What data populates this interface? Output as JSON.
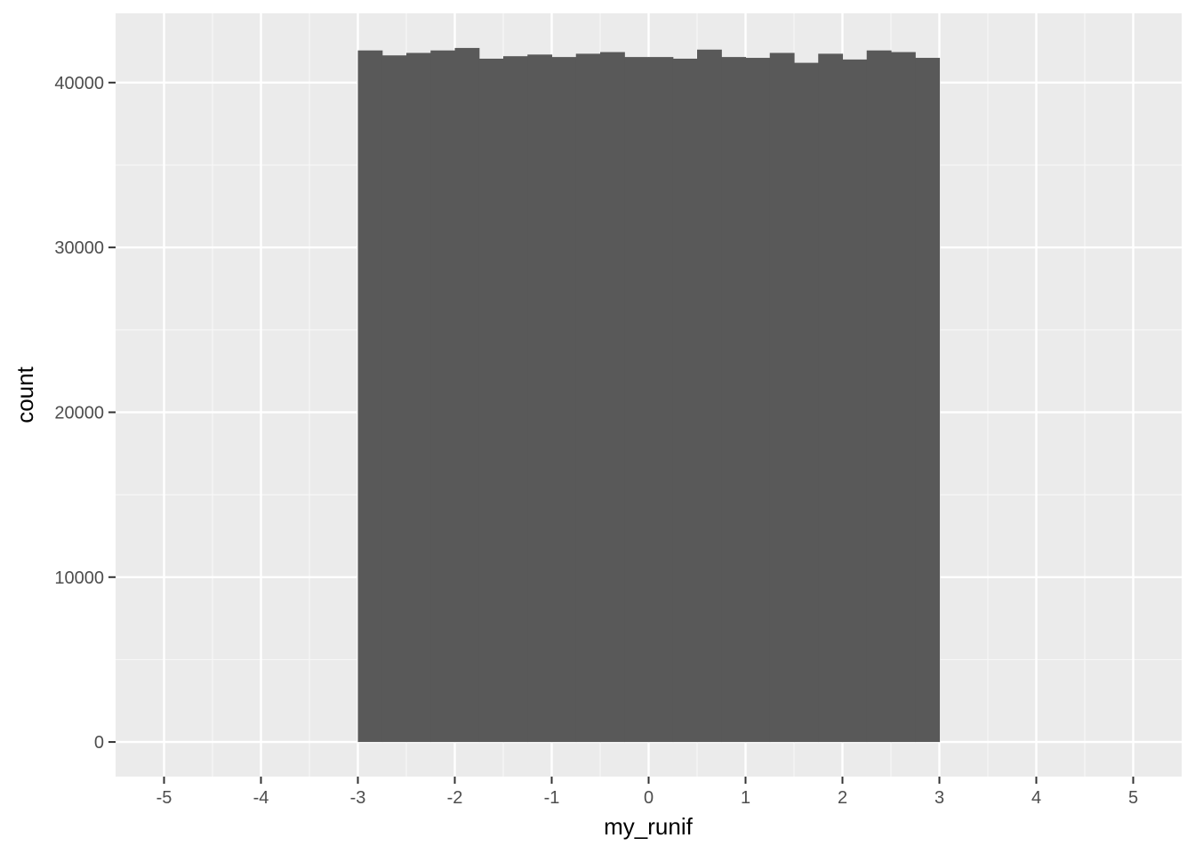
{
  "chart_data": {
    "type": "bar",
    "subtype": "histogram",
    "title": "",
    "xlabel": "my_runif",
    "ylabel": "count",
    "xlim": [
      -5.5,
      5.5
    ],
    "ylim": [
      -2100,
      44200
    ],
    "x_ticks": [
      -5,
      -4,
      -3,
      -2,
      -1,
      0,
      1,
      2,
      3,
      4,
      5
    ],
    "x_tick_labels": [
      "-5",
      "-4",
      "-3",
      "-2",
      "-1",
      "0",
      "1",
      "2",
      "3",
      "4",
      "5"
    ],
    "y_ticks": [
      0,
      10000,
      20000,
      30000,
      40000
    ],
    "y_tick_labels": [
      "0",
      "10000",
      "20000",
      "30000",
      "40000"
    ],
    "grid": true,
    "legend": "none",
    "bin_width": 0.25,
    "bins": [
      {
        "x0": -3.0,
        "x1": -2.75,
        "value": 41950
      },
      {
        "x0": -2.75,
        "x1": -2.5,
        "value": 41650
      },
      {
        "x0": -2.5,
        "x1": -2.25,
        "value": 41800
      },
      {
        "x0": -2.25,
        "x1": -2.0,
        "value": 41950
      },
      {
        "x0": -2.0,
        "x1": -1.75,
        "value": 42100
      },
      {
        "x0": -1.75,
        "x1": -1.5,
        "value": 41450
      },
      {
        "x0": -1.5,
        "x1": -1.25,
        "value": 41600
      },
      {
        "x0": -1.25,
        "x1": -1.0,
        "value": 41700
      },
      {
        "x0": -1.0,
        "x1": -0.75,
        "value": 41550
      },
      {
        "x0": -0.75,
        "x1": -0.5,
        "value": 41750
      },
      {
        "x0": -0.5,
        "x1": -0.25,
        "value": 41850
      },
      {
        "x0": -0.25,
        "x1": 0.0,
        "value": 41550
      },
      {
        "x0": 0.0,
        "x1": 0.25,
        "value": 41550
      },
      {
        "x0": 0.25,
        "x1": 0.5,
        "value": 41450
      },
      {
        "x0": 0.5,
        "x1": 0.75,
        "value": 42000
      },
      {
        "x0": 0.75,
        "x1": 1.0,
        "value": 41550
      },
      {
        "x0": 1.0,
        "x1": 1.25,
        "value": 41500
      },
      {
        "x0": 1.25,
        "x1": 1.5,
        "value": 41800
      },
      {
        "x0": 1.5,
        "x1": 1.75,
        "value": 41200
      },
      {
        "x0": 1.75,
        "x1": 2.0,
        "value": 41750
      },
      {
        "x0": 2.0,
        "x1": 2.25,
        "value": 41400
      },
      {
        "x0": 2.25,
        "x1": 2.5,
        "value": 41950
      },
      {
        "x0": 2.5,
        "x1": 2.75,
        "value": 41850
      },
      {
        "x0": 2.75,
        "x1": 3.0,
        "value": 41500
      }
    ],
    "colors": {
      "panel_background": "#ebebeb",
      "grid_major": "#ffffff",
      "grid_minor": "#f7f7f7",
      "bar_fill": "#595959",
      "tick_label": "#4d4d4d",
      "tick_mark": "#333333",
      "axis_title": "#000000"
    }
  }
}
